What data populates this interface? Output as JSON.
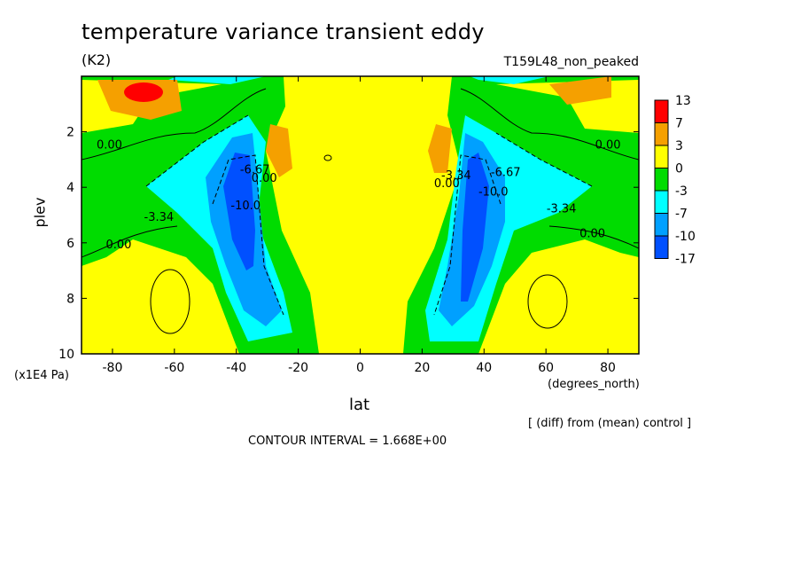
{
  "header": {
    "title": "temperature variance transient eddy",
    "units": "(K2)",
    "run_name": "T159L48_non_peaked"
  },
  "footer": {
    "note": "[ (diff) from (mean) control ]",
    "contour_interval": "CONTOUR INTERVAL = 1.668E+00"
  },
  "chart_data": {
    "type": "heatmap",
    "title": "temperature variance transient eddy",
    "subtitle": "(K2)",
    "xlabel": "lat",
    "xlabel_unit": "(degrees_north)",
    "ylabel": "plev",
    "ylabel_unit": "(x1E4 Pa)",
    "xlim": [
      -90,
      90
    ],
    "ylim": [
      0,
      10
    ],
    "y_inverted": true,
    "x_ticks": [
      -80,
      -60,
      -40,
      -20,
      0,
      20,
      40,
      60,
      80
    ],
    "y_ticks": [
      2,
      4,
      6,
      8,
      10
    ],
    "colorbar": {
      "labels": [
        "13",
        "7",
        "3",
        "0",
        "-3",
        "-7",
        "-10",
        "-17"
      ],
      "colors": [
        "#ff0000",
        "#f5a000",
        "#ffff00",
        "#00dc00",
        "#00ffff",
        "#00a0ff",
        "#0050ff"
      ]
    },
    "contour_labels": [
      {
        "text": "0.00",
        "lat": -81,
        "plev": 2.6
      },
      {
        "text": "0.00",
        "lat": 80,
        "plev": 2.6
      },
      {
        "text": "-3.34",
        "lat": -65,
        "plev": 5.2
      },
      {
        "text": "-3.34",
        "lat": 65,
        "plev": 4.9
      },
      {
        "text": "0.00",
        "lat": -78,
        "plev": 6.2
      },
      {
        "text": "0.00",
        "lat": 75,
        "plev": 5.8
      },
      {
        "text": "-10.0",
        "lat": -37,
        "plev": 4.8
      },
      {
        "text": "-6.67",
        "lat": -34,
        "plev": 3.5
      },
      {
        "text": "0.00",
        "lat": -31,
        "plev": 3.8
      },
      {
        "text": "0.00",
        "lat": 28,
        "plev": 4.0
      },
      {
        "text": "-3.34",
        "lat": 31,
        "plev": 3.7
      },
      {
        "text": "-10.0",
        "lat": 43,
        "plev": 4.3
      },
      {
        "text": "-6.67",
        "lat": 47,
        "plev": 3.6
      }
    ]
  }
}
